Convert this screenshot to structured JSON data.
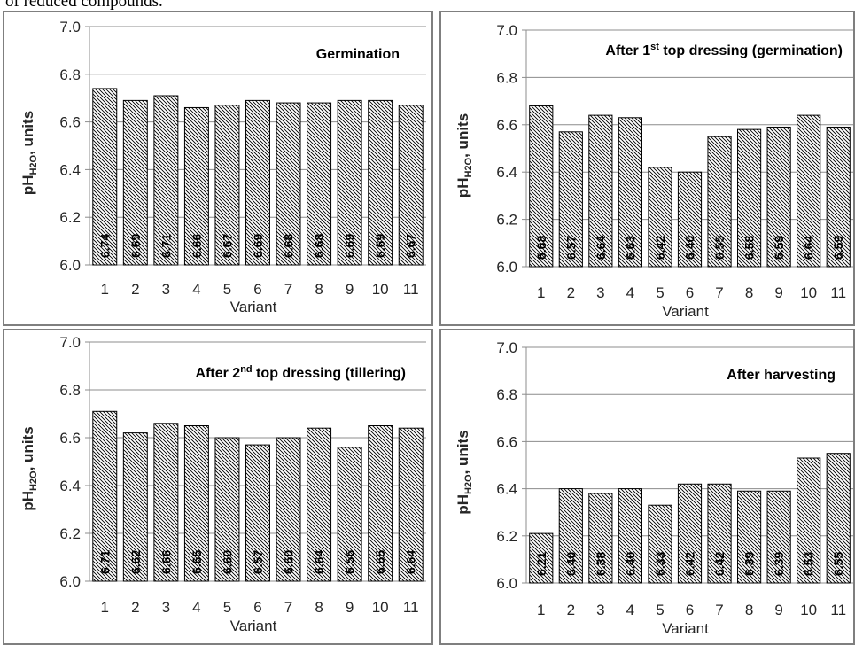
{
  "page": {
    "intro_text": "of reduced compounds."
  },
  "chart_data": [
    {
      "type": "bar",
      "title": "Germination",
      "xlabel": "Variant",
      "ylabel": "pH",
      "ylabel_sub": "H2O",
      "ylabel_rest": ", units",
      "ylim": [
        6.0,
        7.0
      ],
      "yticks": [
        "6.0",
        "6.2",
        "6.4",
        "6.6",
        "6.8",
        "7.0"
      ],
      "grid": true,
      "legend": "none",
      "categories": [
        "1",
        "2",
        "3",
        "4",
        "5",
        "6",
        "7",
        "8",
        "9",
        "10",
        "11"
      ],
      "values": [
        6.74,
        6.69,
        6.71,
        6.66,
        6.67,
        6.69,
        6.68,
        6.68,
        6.69,
        6.69,
        6.67
      ],
      "labels": [
        "6.74",
        "6.69",
        "6.71",
        "6.66",
        "6.67",
        "6.69",
        "6.68",
        "6.68",
        "6.69",
        "6.69",
        "6.67"
      ]
    },
    {
      "type": "bar",
      "title": "After 1",
      "title_sup": "st",
      "title_rest": " top dressing (germination)",
      "xlabel": "Variant",
      "ylabel": "pH",
      "ylabel_sub": "H2O",
      "ylabel_rest": ", units",
      "ylim": [
        6.0,
        7.0
      ],
      "yticks": [
        "6.0",
        "6.2",
        "6.4",
        "6.6",
        "6.8",
        "7.0"
      ],
      "grid": true,
      "legend": "none",
      "categories": [
        "1",
        "2",
        "3",
        "4",
        "5",
        "6",
        "7",
        "8",
        "9",
        "10",
        "11"
      ],
      "values": [
        6.68,
        6.57,
        6.64,
        6.63,
        6.42,
        6.4,
        6.55,
        6.58,
        6.59,
        6.64,
        6.59
      ],
      "labels": [
        "6.68",
        "6.57",
        "6.64",
        "6.63",
        "6.42",
        "6.40",
        "6.55",
        "6.58",
        "6.59",
        "6.64",
        "6.59"
      ]
    },
    {
      "type": "bar",
      "title": "After 2",
      "title_sup": "nd",
      "title_rest": " top dressing (tillering)",
      "xlabel": "Variant",
      "ylabel": "pH",
      "ylabel_sub": "H2O",
      "ylabel_rest": ", units",
      "ylim": [
        6.0,
        7.0
      ],
      "yticks": [
        "6.0",
        "6.2",
        "6.4",
        "6.6",
        "6.8",
        "7.0"
      ],
      "grid": true,
      "legend": "none",
      "categories": [
        "1",
        "2",
        "3",
        "4",
        "5",
        "6",
        "7",
        "8",
        "9",
        "10",
        "11"
      ],
      "values": [
        6.71,
        6.62,
        6.66,
        6.65,
        6.6,
        6.57,
        6.6,
        6.64,
        6.56,
        6.65,
        6.64
      ],
      "labels": [
        "6.71",
        "6.62",
        "6.66",
        "6.65",
        "6.60",
        "6.57",
        "6.60",
        "6.64",
        "6.56",
        "6.65",
        "6.64"
      ]
    },
    {
      "type": "bar",
      "title": "After harvesting",
      "xlabel": "Variant",
      "ylabel": "pH",
      "ylabel_sub": "H2O",
      "ylabel_rest": ", units",
      "ylim": [
        6.0,
        7.0
      ],
      "yticks": [
        "6.0",
        "6.2",
        "6.4",
        "6.6",
        "6.8",
        "7.0"
      ],
      "grid": true,
      "legend": "none",
      "categories": [
        "1",
        "2",
        "3",
        "4",
        "5",
        "6",
        "7",
        "8",
        "9",
        "10",
        "11"
      ],
      "values": [
        6.21,
        6.4,
        6.38,
        6.4,
        6.33,
        6.42,
        6.42,
        6.39,
        6.39,
        6.53,
        6.55
      ],
      "labels": [
        "6.21",
        "6.40",
        "6.38",
        "6.40",
        "6.33",
        "6.42",
        "6.42",
        "6.39",
        "6.39",
        "6.53",
        "6.55"
      ]
    }
  ]
}
